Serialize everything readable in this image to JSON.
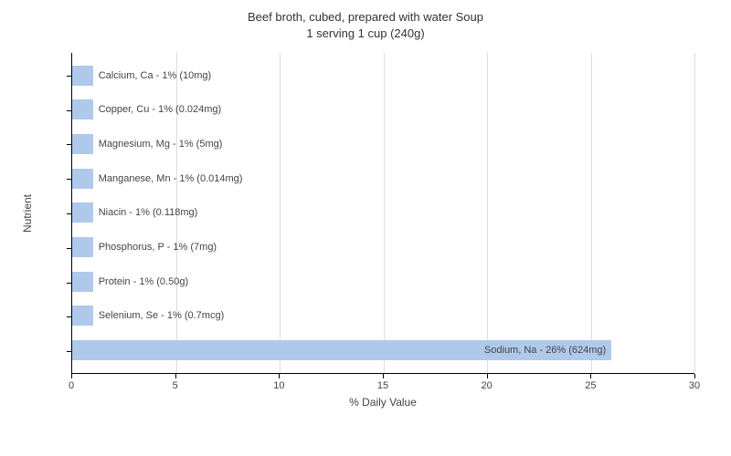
{
  "title_line1": "Beef broth, cubed, prepared with water Soup",
  "title_line2": "1 serving 1 cup (240g)",
  "chart": {
    "type": "bar-horizontal",
    "x_label": "% Daily Value",
    "y_label": "Nutrient",
    "x_min": 0,
    "x_max": 30,
    "x_tick_step": 5,
    "x_ticks": [
      "0",
      "5",
      "10",
      "15",
      "20",
      "25",
      "30"
    ],
    "bar_color": "#afc9eb",
    "grid_color": "#dddddd",
    "axis_color": "#000000",
    "text_color": "#444444",
    "title_fontsize": 13,
    "label_fontsize": 12,
    "tick_fontsize": 11,
    "bar_label_fontsize": 11,
    "background_color": "#ffffff",
    "bars": [
      {
        "label": "Calcium, Ca - 1% (10mg)",
        "value": 1,
        "label_side": "right"
      },
      {
        "label": "Copper, Cu - 1% (0.024mg)",
        "value": 1,
        "label_side": "right"
      },
      {
        "label": "Magnesium, Mg - 1% (5mg)",
        "value": 1,
        "label_side": "right"
      },
      {
        "label": "Manganese, Mn - 1% (0.014mg)",
        "value": 1,
        "label_side": "right"
      },
      {
        "label": "Niacin - 1% (0.118mg)",
        "value": 1,
        "label_side": "right"
      },
      {
        "label": "Phosphorus, P - 1% (7mg)",
        "value": 1,
        "label_side": "right"
      },
      {
        "label": "Protein - 1% (0.50g)",
        "value": 1,
        "label_side": "right"
      },
      {
        "label": "Selenium, Se - 1% (0.7mcg)",
        "value": 1,
        "label_side": "right"
      },
      {
        "label": "Sodium, Na - 26% (624mg)",
        "value": 26,
        "label_side": "inside-right"
      }
    ]
  }
}
